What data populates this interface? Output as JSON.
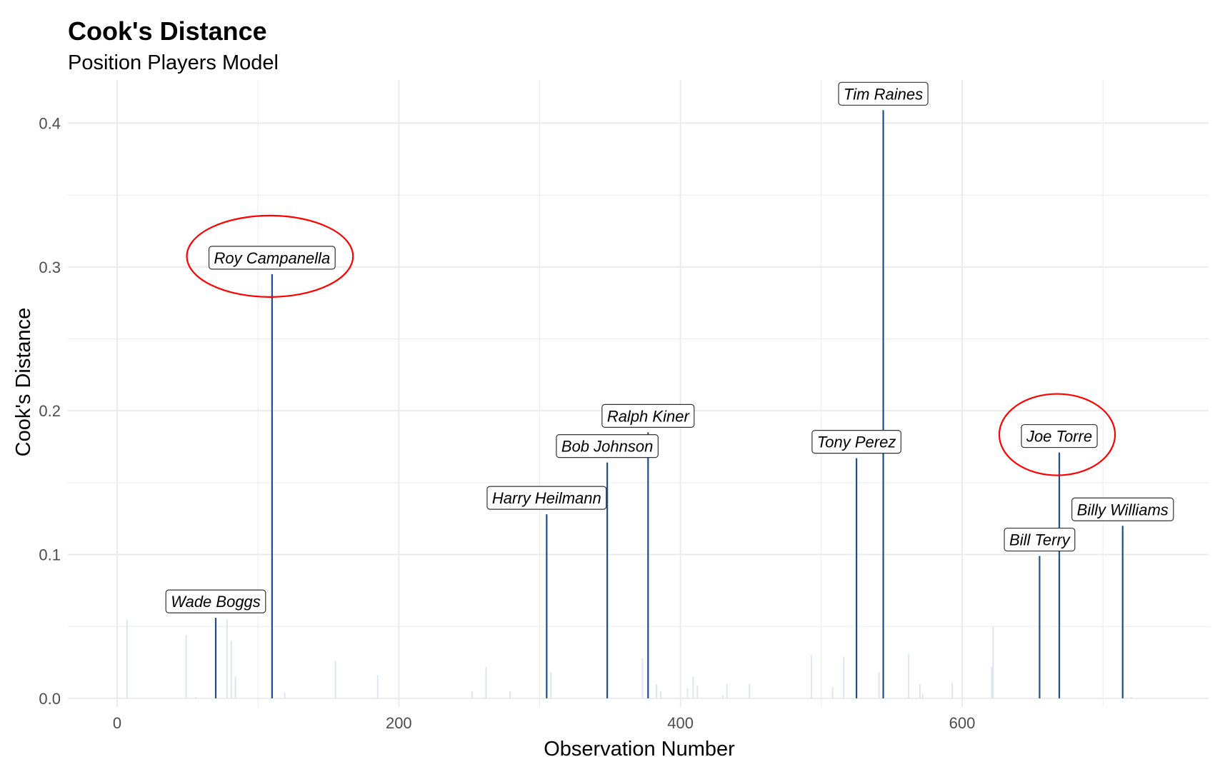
{
  "chart_data": {
    "type": "bar",
    "title": "Cook's Distance",
    "subtitle": "Position Players Model",
    "xlabel": "Observation Number",
    "ylabel": "Cook's Distance",
    "xlim": [
      -35,
      775
    ],
    "ylim": [
      -0.006,
      0.43
    ],
    "x_ticks": [
      0,
      200,
      400,
      600
    ],
    "y_ticks": [
      0.0,
      0.1,
      0.2,
      0.3,
      0.4
    ],
    "x_tick_labels": [
      "0",
      "200",
      "400",
      "600"
    ],
    "y_tick_labels": [
      "0.0",
      "0.1",
      "0.2",
      "0.3",
      "0.4"
    ],
    "grid": true,
    "colors": {
      "highlight": "#1f4e8c",
      "background_bar": "#dfe5ee",
      "grid": "#ebebeb",
      "circle": "#ff0000"
    },
    "highlighted": [
      {
        "x": 70,
        "y": 0.056,
        "label": "Wade Boggs"
      },
      {
        "x": 110,
        "y": 0.295,
        "label": "Roy Campanella",
        "circled": true
      },
      {
        "x": 305,
        "y": 0.128,
        "label": "Harry Heilmann"
      },
      {
        "x": 348,
        "y": 0.164,
        "label": "Bob Johnson"
      },
      {
        "x": 377,
        "y": 0.185,
        "label": "Ralph Kiner"
      },
      {
        "x": 525,
        "y": 0.167,
        "label": "Tony Perez"
      },
      {
        "x": 544,
        "y": 0.409,
        "label": "Tim Raines"
      },
      {
        "x": 655,
        "y": 0.099,
        "label": "Bill Terry"
      },
      {
        "x": 669,
        "y": 0.171,
        "label": "Joe Torre",
        "circled": true
      },
      {
        "x": 714,
        "y": 0.12,
        "label": "Billy Williams"
      }
    ],
    "others": [
      {
        "x": 7,
        "y": 0.055
      },
      {
        "x": 49,
        "y": 0.044
      },
      {
        "x": 56,
        "y": 0.001
      },
      {
        "x": 78,
        "y": 0.055
      },
      {
        "x": 81,
        "y": 0.04
      },
      {
        "x": 84,
        "y": 0.015
      },
      {
        "x": 119,
        "y": 0.004
      },
      {
        "x": 155,
        "y": 0.026
      },
      {
        "x": 185,
        "y": 0.016
      },
      {
        "x": 252,
        "y": 0.005
      },
      {
        "x": 262,
        "y": 0.022
      },
      {
        "x": 279,
        "y": 0.005
      },
      {
        "x": 308,
        "y": 0.018
      },
      {
        "x": 373,
        "y": 0.028
      },
      {
        "x": 383,
        "y": 0.01
      },
      {
        "x": 386,
        "y": 0.005
      },
      {
        "x": 405,
        "y": 0.007
      },
      {
        "x": 409,
        "y": 0.015
      },
      {
        "x": 412,
        "y": 0.009
      },
      {
        "x": 430,
        "y": 0.002
      },
      {
        "x": 433,
        "y": 0.01
      },
      {
        "x": 449,
        "y": 0.01
      },
      {
        "x": 493,
        "y": 0.03
      },
      {
        "x": 508,
        "y": 0.008
      },
      {
        "x": 516,
        "y": 0.029
      },
      {
        "x": 541,
        "y": 0.018
      },
      {
        "x": 562,
        "y": 0.031
      },
      {
        "x": 570,
        "y": 0.01
      },
      {
        "x": 572,
        "y": 0.003
      },
      {
        "x": 593,
        "y": 0.011
      },
      {
        "x": 621,
        "y": 0.022
      },
      {
        "x": 622,
        "y": 0.05
      },
      {
        "x": 720,
        "y": 0.001
      }
    ]
  }
}
